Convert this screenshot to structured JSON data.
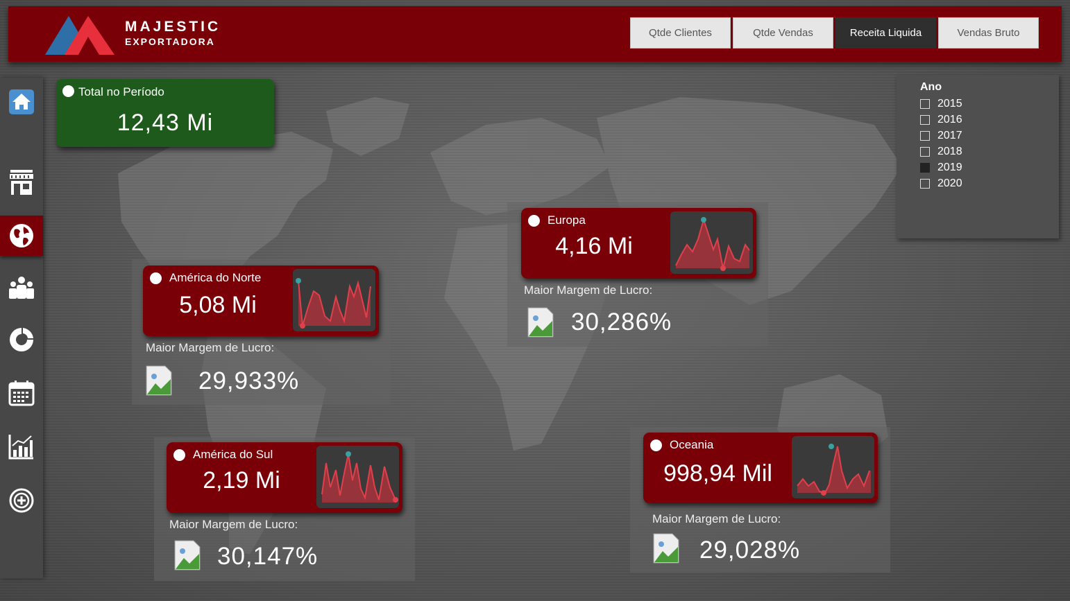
{
  "brand": {
    "name": "MAJESTIC",
    "subtitle": "EXPORTADORA"
  },
  "tabs": [
    {
      "label": "Qtde Clientes",
      "active": false
    },
    {
      "label": "Qtde Vendas",
      "active": false
    },
    {
      "label": "Receita Liquida",
      "active": true
    },
    {
      "label": "Vendas Bruto",
      "active": false
    }
  ],
  "sidebar": {
    "items": [
      {
        "name": "home",
        "icon": "home-icon",
        "active": false
      },
      {
        "name": "store",
        "icon": "store-icon",
        "active": false
      },
      {
        "name": "globe",
        "icon": "globe-icon",
        "active": true
      },
      {
        "name": "people",
        "icon": "people-icon",
        "active": false
      },
      {
        "name": "donut",
        "icon": "donut-chart-icon",
        "active": false
      },
      {
        "name": "calendar",
        "icon": "calendar-icon",
        "active": false
      },
      {
        "name": "bar-chart",
        "icon": "bar-chart-icon",
        "active": false
      },
      {
        "name": "add",
        "icon": "add-circle-icon",
        "active": false
      }
    ]
  },
  "total": {
    "label": "Total no Período",
    "value": "12,43 Mi"
  },
  "filter": {
    "title": "Ano",
    "years": [
      {
        "label": "2015",
        "checked": false
      },
      {
        "label": "2016",
        "checked": false
      },
      {
        "label": "2017",
        "checked": false
      },
      {
        "label": "2018",
        "checked": false
      },
      {
        "label": "2019",
        "checked": true
      },
      {
        "label": "2020",
        "checked": false
      }
    ]
  },
  "colors": {
    "brand_red": "#7a0008",
    "total_green": "#1e5a1b",
    "spark_fill": "#a8323c",
    "spark_line": "#e0404c",
    "point_max": "#3aa0a0",
    "point_min": "#e0404c"
  },
  "regions": [
    {
      "key": "na",
      "name": "América do Norte",
      "value": "5,08 Mi",
      "margin_label": "Maior Margem de Lucro:",
      "margin": "29,933%"
    },
    {
      "key": "eu",
      "name": "Europa",
      "value": "4,16 Mi",
      "margin_label": "Maior Margem de Lucro:",
      "margin": "30,286%"
    },
    {
      "key": "sa",
      "name": "América do Sul",
      "value": "2,19 Mi",
      "margin_label": "Maior Margem de Lucro:",
      "margin": "30,147%"
    },
    {
      "key": "oc",
      "name": "Oceania",
      "value": "998,94 Mil",
      "margin_label": "Maior Margem de Lucro:",
      "margin": "29,028%"
    }
  ]
}
